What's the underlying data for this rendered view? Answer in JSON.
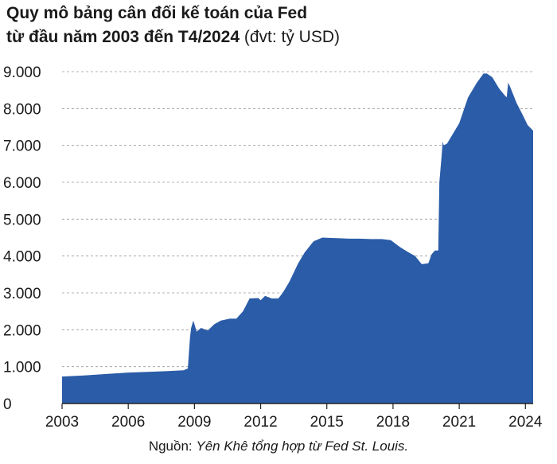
{
  "title": {
    "line1": "Quy mô bảng cân đối kế toán của Fed",
    "line2_bold": "từ đầu năm 2003 đến T4/2024",
    "line2_unit": " (đvt: tỷ USD)"
  },
  "source": {
    "label": "Nguồn: ",
    "text": "Yên Khê tổng hợp từ Fed St. Louis."
  },
  "colors": {
    "area": "#2b5ca8",
    "grid": "#9a9a9a",
    "axis": "#222222"
  },
  "chart_data": {
    "type": "area",
    "xlim": [
      2003.0,
      2024.35
    ],
    "ylim": [
      0,
      9000
    ],
    "y_ticks": [
      0,
      1000,
      2000,
      3000,
      4000,
      5000,
      6000,
      7000,
      8000,
      9000
    ],
    "y_tick_labels": [
      "0",
      "1.000",
      "2.000",
      "3.000",
      "4.000",
      "5.000",
      "6.000",
      "7.000",
      "8.000",
      "9.000"
    ],
    "x_ticks": [
      2003,
      2006,
      2009,
      2012,
      2015,
      2018,
      2021,
      2024
    ],
    "x_tick_labels": [
      "2003",
      "2006",
      "2009",
      "2012",
      "2015",
      "2018",
      "2021",
      "2024"
    ],
    "grid": "horizontal-dashed",
    "series": [
      {
        "x": [
          2003.0,
          2004.0,
          2005.0,
          2006.0,
          2007.0,
          2007.8,
          2008.5,
          2008.7,
          2008.8,
          2008.85,
          2008.95,
          2009.1,
          2009.3,
          2009.6,
          2009.9,
          2010.2,
          2010.6,
          2010.9,
          2011.2,
          2011.5,
          2011.9,
          2012.0,
          2012.2,
          2012.5,
          2012.8,
          2013.0,
          2013.3,
          2013.7,
          2014.0,
          2014.4,
          2014.8,
          2015.2,
          2015.6,
          2016.0,
          2016.5,
          2017.0,
          2017.5,
          2017.9,
          2018.3,
          2018.7,
          2019.0,
          2019.3,
          2019.6,
          2019.75,
          2019.9,
          2020.05,
          2020.1,
          2020.2,
          2020.25,
          2020.3,
          2020.45,
          2020.7,
          2021.0,
          2021.4,
          2021.8,
          2022.1,
          2022.25,
          2022.5,
          2022.8,
          2023.0,
          2023.15,
          2023.22,
          2023.3,
          2023.6,
          2023.9,
          2024.1,
          2024.35
        ],
        "values": [
          730,
          760,
          800,
          840,
          860,
          880,
          900,
          950,
          1800,
          2050,
          2250,
          1950,
          2050,
          1980,
          2150,
          2250,
          2300,
          2300,
          2500,
          2850,
          2860,
          2800,
          2920,
          2850,
          2850,
          3000,
          3300,
          3800,
          4100,
          4400,
          4500,
          4490,
          4480,
          4470,
          4470,
          4460,
          4460,
          4430,
          4250,
          4100,
          4000,
          3780,
          3800,
          4050,
          4150,
          4150,
          6000,
          6700,
          7100,
          7000,
          7050,
          7300,
          7600,
          8300,
          8700,
          8950,
          8950,
          8850,
          8550,
          8400,
          8300,
          8700,
          8600,
          8150,
          7800,
          7550,
          7400
        ]
      }
    ]
  }
}
